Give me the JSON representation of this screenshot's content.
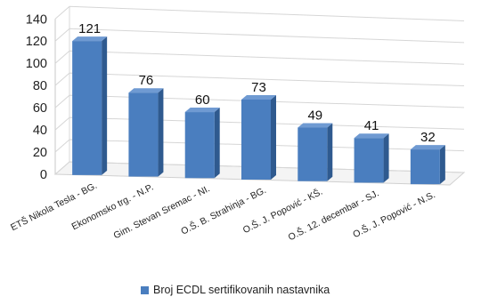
{
  "chart_data": {
    "type": "bar",
    "title": "",
    "xlabel": "",
    "ylabel": "",
    "categories": [
      "ETŠ Nikola Tesla - BG.",
      "Ekonomsko trg. - N.P.",
      "Gim. Stevan Sremac - NI.",
      "O.Š. B. Strahinja - BG.",
      "O.Š. J. Popović - KŠ.",
      "O.Š. 12. decembar - SJ.",
      "O.Š. J. Popović - N.S."
    ],
    "series": [
      {
        "name": "Broj ECDL sertifikovanih nastavnika",
        "values": [
          121,
          76,
          60,
          73,
          49,
          41,
          32
        ],
        "color": "#4a7ebf"
      }
    ],
    "ylim": [
      0,
      140
    ],
    "yticks": [
      0,
      20,
      40,
      60,
      80,
      100,
      120,
      140
    ],
    "grid": true,
    "three_d": true,
    "legend_position": "bottom"
  }
}
